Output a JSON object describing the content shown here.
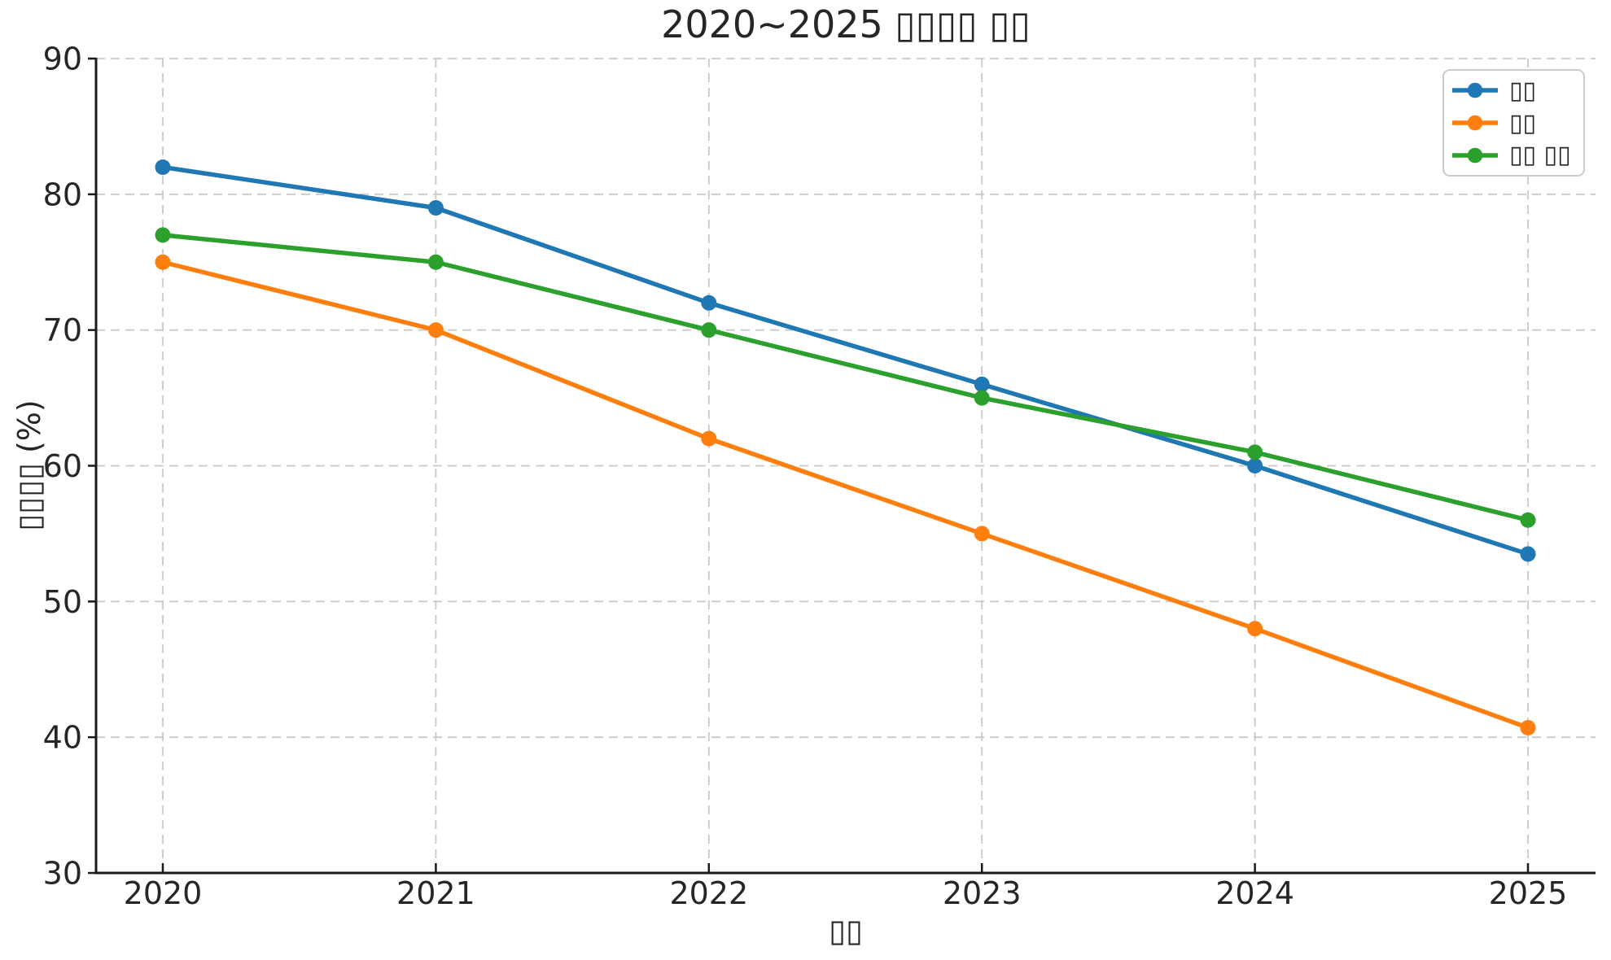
{
  "chart_data": {
    "type": "line",
    "title": "2020~2025 ▯▯▯▯ ▯▯",
    "xlabel": "▯▯",
    "ylabel": "▯▯▯▯ (%)",
    "x": [
      2020,
      2021,
      2022,
      2023,
      2024,
      2025
    ],
    "x_tick_labels": [
      "2020",
      "2021",
      "2022",
      "2023",
      "2024",
      "2025"
    ],
    "yticks": [
      30,
      40,
      50,
      60,
      70,
      80,
      90
    ],
    "y_tick_labels": [
      "30",
      "40",
      "50",
      "60",
      "70",
      "80",
      "90"
    ],
    "ylim": [
      30,
      90
    ],
    "grid": true,
    "grid_style": "dashed",
    "legend_position": "upper right",
    "series": [
      {
        "name": "▯▯",
        "color": "#1f77b4",
        "marker": "circle",
        "values": [
          82,
          79,
          72,
          66,
          60,
          53.5
        ]
      },
      {
        "name": "▯▯",
        "color": "#ff7f0e",
        "marker": "circle",
        "values": [
          75,
          70,
          62,
          55,
          48,
          40.7
        ]
      },
      {
        "name": "▯▯ ▯▯",
        "color": "#2ca02c",
        "marker": "circle",
        "values": [
          77,
          75,
          70,
          65,
          61,
          56
        ]
      }
    ],
    "style": {
      "background": "#ffffff",
      "grid_color": "#c9c9c9",
      "spine_color": "#1a1a1a",
      "text_color": "#262626"
    }
  }
}
